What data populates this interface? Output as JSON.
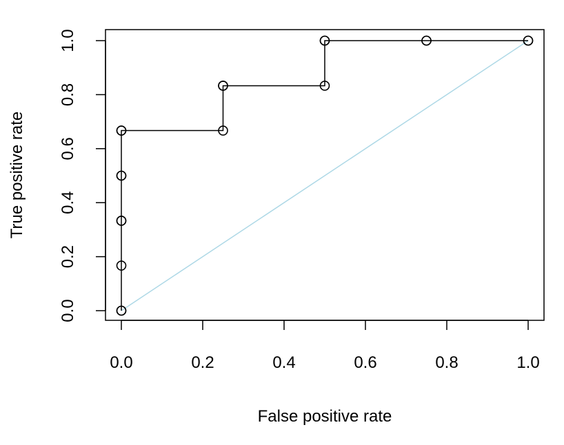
{
  "chart_data": {
    "type": "line",
    "title": "",
    "xlabel": "False positive rate",
    "ylabel": "True positive rate",
    "xlim": [
      0,
      1
    ],
    "ylim": [
      0,
      1
    ],
    "x_ticks": [
      "0.0",
      "0.2",
      "0.4",
      "0.6",
      "0.8",
      "1.0"
    ],
    "y_ticks": [
      "0.0",
      "0.2",
      "0.4",
      "0.6",
      "0.8",
      "1.0"
    ],
    "grid": false,
    "legend": "none",
    "series": [
      {
        "style": "step line with open circle markers",
        "color": "#000000",
        "points": [
          {
            "x": 0.0,
            "y": 0.0
          },
          {
            "x": 0.0,
            "y": 0.0
          },
          {
            "x": 0.0,
            "y": 0.167
          },
          {
            "x": 0.0,
            "y": 0.333
          },
          {
            "x": 0.0,
            "y": 0.333
          },
          {
            "x": 0.0,
            "y": 0.5
          },
          {
            "x": 0.0,
            "y": 0.5
          },
          {
            "x": 0.0,
            "y": 0.667
          },
          {
            "x": 0.0,
            "y": 0.667
          },
          {
            "x": 0.25,
            "y": 0.667
          },
          {
            "x": 0.25,
            "y": 0.833
          },
          {
            "x": 0.25,
            "y": 0.833
          },
          {
            "x": 0.5,
            "y": 0.833
          },
          {
            "x": 0.5,
            "y": 1.0
          },
          {
            "x": 0.5,
            "y": 1.0
          },
          {
            "x": 0.75,
            "y": 1.0
          },
          {
            "x": 0.75,
            "y": 1.0
          },
          {
            "x": 1.0,
            "y": 1.0
          },
          {
            "x": 1.0,
            "y": 1.0
          }
        ]
      },
      {
        "style": "diagonal reference line",
        "color": "#add8e6",
        "points": [
          {
            "x": 0.0,
            "y": 0.0
          },
          {
            "x": 1.0,
            "y": 1.0
          }
        ]
      }
    ]
  }
}
